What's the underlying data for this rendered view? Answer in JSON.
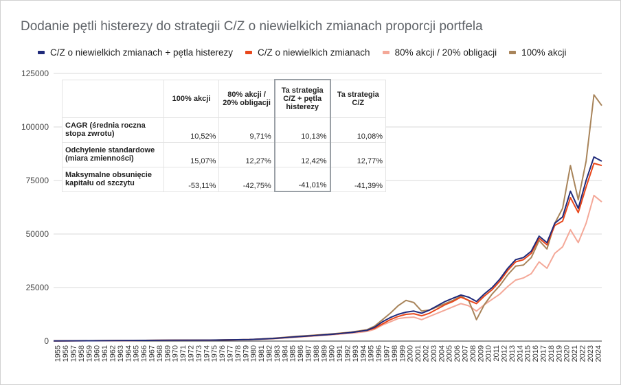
{
  "chart_data": {
    "type": "line",
    "title": "Dodanie pętli histerezy do strategii C/Z o niewielkich zmianach proporcji portfela",
    "xlabel": "",
    "ylabel": "",
    "ylim": [
      0,
      125000
    ],
    "y_ticks": [
      "0",
      "25000",
      "50000",
      "75000",
      "100000",
      "125000"
    ],
    "x_start_year": 1955,
    "x_end_year": 2025,
    "grid": "horizontal",
    "legend_position": "top",
    "x": [
      1955,
      1960,
      1965,
      1970,
      1975,
      1980,
      1983,
      1986,
      1990,
      1993,
      1995,
      1996,
      1997,
      1998,
      1999,
      2000,
      2001,
      2002,
      2003,
      2004,
      2005,
      2006,
      2007,
      2008,
      2009,
      2010,
      2011,
      2012,
      2013,
      2014,
      2015,
      2016,
      2017,
      2018,
      2019,
      2020,
      2021,
      2022,
      2023,
      2024,
      2025
    ],
    "series": [
      {
        "name": "C/Z o niewielkich zmianach + pętla histerezy",
        "color": "#1f2a7a",
        "values": [
          100,
          170,
          300,
          400,
          450,
          700,
          1200,
          2000,
          3000,
          4000,
          5000,
          6500,
          9000,
          11000,
          12500,
          13500,
          14000,
          13000,
          14500,
          16500,
          18500,
          20000,
          21500,
          20500,
          18500,
          22000,
          25000,
          29000,
          34000,
          38000,
          39000,
          42000,
          49000,
          46000,
          55000,
          58000,
          70000,
          62000,
          75000,
          86000,
          84000
        ]
      },
      {
        "name": "C/Z o niewielkich zmianach",
        "color": "#e8471b",
        "values": [
          100,
          170,
          300,
          400,
          450,
          700,
          1200,
          2000,
          3000,
          4000,
          5000,
          6000,
          8000,
          10000,
          11500,
          12500,
          12800,
          11800,
          13000,
          15000,
          17000,
          18500,
          20500,
          19000,
          17500,
          21000,
          24000,
          28000,
          33000,
          37000,
          38000,
          41000,
          48000,
          45000,
          54000,
          56000,
          67000,
          60000,
          72000,
          83000,
          82000
        ]
      },
      {
        "name": "80% akcji / 20% obligacji",
        "color": "#f4a898",
        "values": [
          100,
          160,
          280,
          370,
          420,
          650,
          1100,
          1800,
          2800,
          3700,
          4500,
          5500,
          7500,
          9000,
          10500,
          11000,
          11200,
          10000,
          11500,
          13000,
          14500,
          16000,
          17500,
          16500,
          14000,
          17000,
          19500,
          22000,
          25500,
          28500,
          29500,
          31500,
          37000,
          34000,
          41000,
          44000,
          52000,
          46000,
          55000,
          68000,
          65000
        ]
      },
      {
        "name": "100% akcji",
        "color": "#a8845a",
        "values": [
          100,
          180,
          320,
          420,
          470,
          750,
          1300,
          2200,
          3200,
          4200,
          5300,
          7000,
          10000,
          13000,
          16500,
          19000,
          18000,
          14000,
          14500,
          16000,
          17500,
          19000,
          21000,
          19000,
          10000,
          17000,
          22000,
          26000,
          31000,
          35000,
          35500,
          39000,
          47000,
          43000,
          55000,
          62000,
          82000,
          66000,
          84000,
          115000,
          110000
        ]
      }
    ]
  },
  "table": {
    "headers": [
      "",
      "100% akcji",
      "80% akcji / 20% obligacji",
      "Ta strategia C/Z + pętla histerezy",
      "Ta strategia C/Z"
    ],
    "rows": [
      {
        "label": "CAGR (średnia roczna stopa zwrotu)",
        "values": [
          "10,52%",
          "9,71%",
          "10,13%",
          "10,08%"
        ]
      },
      {
        "label": "Odchylenie standardowe (miara zmienności)",
        "values": [
          "15,07%",
          "12,27%",
          "12,42%",
          "12,77%"
        ]
      },
      {
        "label": "Maksymalne obsunięcie kapitału od szczytu",
        "values": [
          "-53,11%",
          "-42,75%",
          "-41,01%",
          "-41,39%"
        ]
      }
    ]
  }
}
